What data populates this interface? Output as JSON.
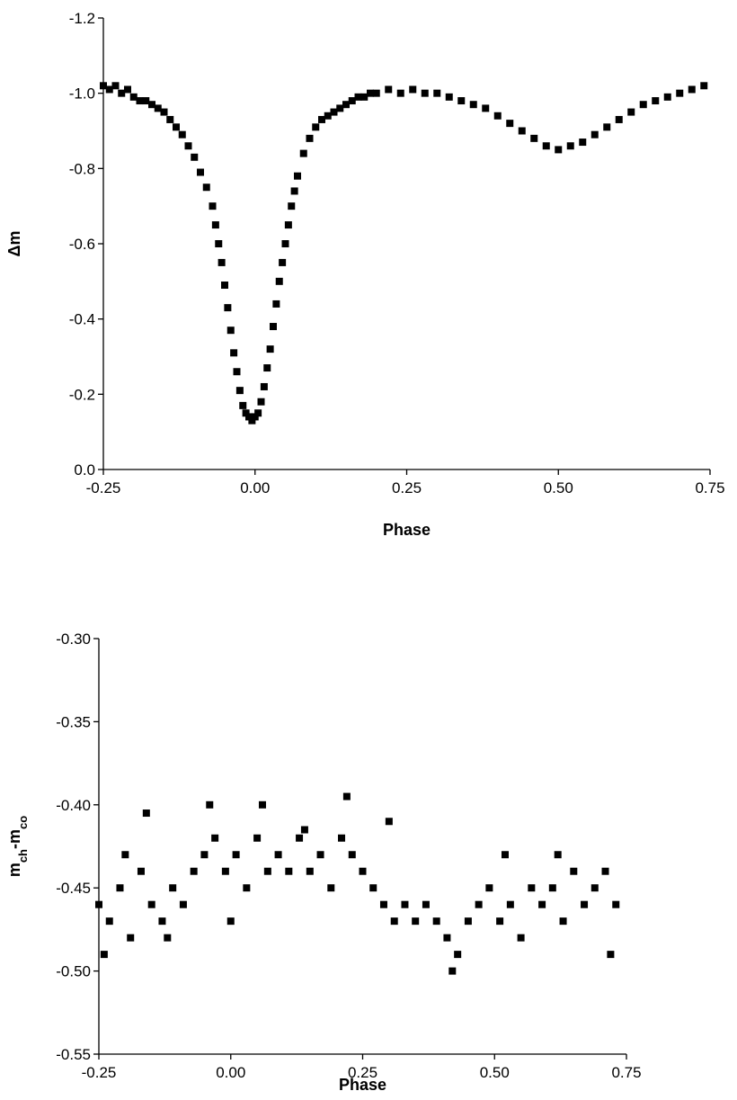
{
  "chart_data": [
    {
      "type": "scatter",
      "xlabel": "Phase",
      "ylabel": [
        "Δm"
      ],
      "color": "#000000",
      "x": [
        -0.25,
        -0.24,
        -0.23,
        -0.22,
        -0.21,
        -0.2,
        -0.19,
        -0.18,
        -0.17,
        -0.16,
        -0.15,
        -0.14,
        -0.13,
        -0.12,
        -0.11,
        -0.1,
        -0.09,
        -0.08,
        -0.07,
        -0.065,
        -0.06,
        -0.055,
        -0.05,
        -0.045,
        -0.04,
        -0.035,
        -0.03,
        -0.025,
        -0.02,
        -0.015,
        -0.01,
        -0.005,
        0,
        0.005,
        0.01,
        0.015,
        0.02,
        0.025,
        0.03,
        0.035,
        0.04,
        0.045,
        0.05,
        0.055,
        0.06,
        0.065,
        0.07,
        0.08,
        0.09,
        0.1,
        0.11,
        0.12,
        0.13,
        0.14,
        0.15,
        0.16,
        0.17,
        0.18,
        0.19,
        0.2,
        0.22,
        0.24,
        0.26,
        0.28,
        0.3,
        0.32,
        0.34,
        0.36,
        0.38,
        0.4,
        0.42,
        0.44,
        0.46,
        0.48,
        0.5,
        0.52,
        0.54,
        0.56,
        0.58,
        0.6,
        0.62,
        0.64,
        0.66,
        0.68,
        0.7,
        0.72,
        0.74
      ],
      "values": [
        -1.02,
        -1.01,
        -1.02,
        -1.0,
        -1.01,
        -0.99,
        -0.98,
        -0.98,
        -0.97,
        -0.96,
        -0.95,
        -0.93,
        -0.91,
        -0.89,
        -0.86,
        -0.83,
        -0.79,
        -0.75,
        -0.7,
        -0.65,
        -0.6,
        -0.55,
        -0.49,
        -0.43,
        -0.37,
        -0.31,
        -0.26,
        -0.21,
        -0.17,
        -0.15,
        -0.14,
        -0.13,
        -0.14,
        -0.15,
        -0.18,
        -0.22,
        -0.27,
        -0.32,
        -0.38,
        -0.44,
        -0.5,
        -0.55,
        -0.6,
        -0.65,
        -0.7,
        -0.74,
        -0.78,
        -0.84,
        -0.88,
        -0.91,
        -0.93,
        -0.94,
        -0.95,
        -0.96,
        -0.97,
        -0.98,
        -0.99,
        -0.99,
        -1.0,
        -1.0,
        -1.01,
        -1.0,
        -1.01,
        -1.0,
        -1.0,
        -0.99,
        -0.98,
        -0.97,
        -0.96,
        -0.94,
        -0.92,
        -0.9,
        -0.88,
        -0.86,
        -0.85,
        -0.86,
        -0.87,
        -0.89,
        -0.91,
        -0.93,
        -0.95,
        -0.97,
        -0.98,
        -0.99,
        -1.0,
        -1.01,
        -1.02
      ],
      "xlim": [
        -0.25,
        0.75
      ],
      "xticks": [
        -0.25,
        {
          "value": 0,
          "label": "0.00"
        },
        0.25,
        {
          "value": 0.5,
          "label": "0.50"
        },
        0.75
      ],
      "ylim": [
        0,
        -1.2
      ],
      "yticks": [
        {
          "value": 0,
          "label": "0.0"
        },
        -0.2,
        -0.4,
        -0.6,
        -0.8,
        {
          "value": -1,
          "label": "-1.0"
        },
        -1.2
      ]
    },
    {
      "type": "scatter",
      "xlabel": "Phase",
      "ylabel": [
        "m",
        "ch",
        "-m",
        "co"
      ],
      "color": "#000000",
      "x": [
        -0.25,
        -0.23,
        -0.21,
        -0.19,
        -0.17,
        -0.15,
        -0.13,
        -0.11,
        -0.09,
        -0.07,
        -0.05,
        -0.03,
        -0.01,
        0.01,
        0.03,
        0.05,
        0.07,
        0.09,
        0.11,
        0.13,
        0.15,
        0.17,
        0.19,
        0.21,
        0.23,
        0.25,
        0.27,
        0.29,
        0.31,
        0.33,
        0.35,
        0.37,
        0.39,
        0.41,
        0.43,
        0.45,
        0.47,
        0.49,
        0.51,
        0.53,
        0.55,
        0.57,
        0.59,
        0.61,
        0.63,
        0.65,
        0.67,
        0.69,
        0.71,
        0.73,
        -0.24,
        -0.2,
        -0.16,
        -0.12,
        -0.04,
        0.0,
        0.06,
        0.14,
        0.22,
        0.3,
        0.42,
        0.52,
        0.62,
        0.72
      ],
      "values": [
        -0.46,
        -0.47,
        -0.45,
        -0.48,
        -0.44,
        -0.46,
        -0.47,
        -0.45,
        -0.46,
        -0.44,
        -0.43,
        -0.42,
        -0.44,
        -0.43,
        -0.45,
        -0.42,
        -0.44,
        -0.43,
        -0.44,
        -0.42,
        -0.44,
        -0.43,
        -0.45,
        -0.42,
        -0.43,
        -0.44,
        -0.45,
        -0.46,
        -0.47,
        -0.46,
        -0.47,
        -0.46,
        -0.47,
        -0.48,
        -0.49,
        -0.47,
        -0.46,
        -0.45,
        -0.47,
        -0.46,
        -0.48,
        -0.45,
        -0.46,
        -0.45,
        -0.47,
        -0.44,
        -0.46,
        -0.45,
        -0.44,
        -0.46,
        -0.49,
        -0.43,
        -0.405,
        -0.48,
        -0.4,
        -0.47,
        -0.4,
        -0.415,
        -0.395,
        -0.41,
        -0.5,
        -0.43,
        -0.43,
        -0.49
      ],
      "xlim": [
        -0.25,
        0.75
      ],
      "xticks": [
        -0.25,
        {
          "value": 0,
          "label": "0.00"
        },
        0.25,
        {
          "value": 0.5,
          "label": "0.50"
        },
        0.75
      ],
      "ylim": [
        -0.55,
        -0.3
      ],
      "yticks": [
        -0.55,
        {
          "value": -0.5,
          "label": "-0.50"
        },
        -0.45,
        {
          "value": -0.4,
          "label": "-0.40"
        },
        -0.35,
        {
          "value": -0.3,
          "label": "-0.30"
        }
      ]
    }
  ]
}
